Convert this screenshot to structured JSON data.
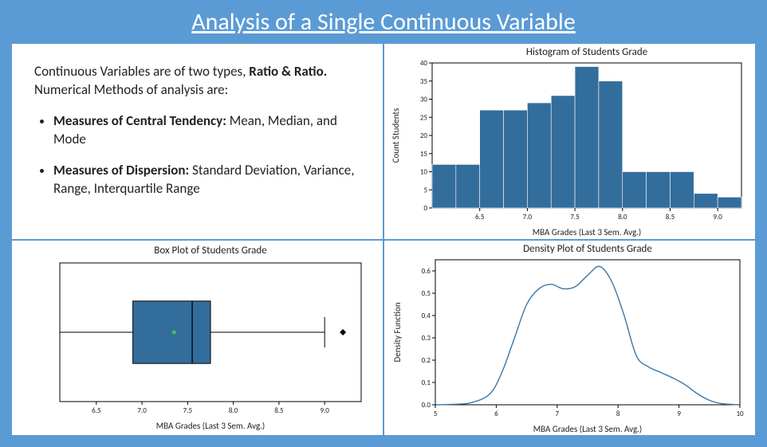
{
  "title": "Analysis of a Single Continuous Variable",
  "frame_bg": "#5b9bd5",
  "content_bg": "#ffffff",
  "text_panel": {
    "intro_prefix": "Continuous Variables are of two types, ",
    "intro_bold": "Ratio & Ratio.",
    "intro_suffix": " Numerical Methods of analysis are:",
    "bullets": [
      {
        "bold": "Measures of Central Tendency:",
        "rest": " Mean, Median, and Mode"
      },
      {
        "bold": "Measures of Dispersion:",
        "rest": " Standard Deviation, Variance, Range, Interquartile Range"
      }
    ],
    "font_size": 17,
    "text_color": "#222222"
  },
  "histogram": {
    "type": "histogram",
    "title": "Histogram of Students Grade",
    "xlabel": "MBA Grades (Last 3 Sem. Avg.)",
    "ylabel": "Count Students",
    "bin_edges": [
      6.0,
      6.25,
      6.5,
      6.75,
      7.0,
      7.25,
      7.5,
      7.75,
      8.0,
      8.25,
      8.5,
      8.75,
      9.0,
      9.25
    ],
    "counts": [
      12,
      12,
      27,
      27,
      29,
      31,
      39,
      35,
      10,
      10,
      10,
      4,
      3
    ],
    "xtick_labels": [
      "6.5",
      "7.0",
      "7.5",
      "8.0",
      "8.5",
      "9.0"
    ],
    "xtick_values": [
      6.5,
      7.0,
      7.5,
      8.0,
      8.5,
      9.0
    ],
    "ytick_step": 5,
    "ylim": [
      0,
      40
    ],
    "xlim": [
      6.0,
      9.25
    ],
    "bar_color": "#336d9c",
    "bar_edge": "#ffffff",
    "axis_color": "#000000",
    "bg": "#ffffff",
    "title_fontsize": 13,
    "label_fontsize": 11,
    "tick_fontsize": 9
  },
  "boxplot": {
    "type": "boxplot",
    "title": "Box Plot of Students Grade",
    "xlabel": "MBA Grades (Last 3 Sem. Avg.)",
    "min": 6.1,
    "q1": 6.9,
    "median": 7.55,
    "q3": 7.75,
    "max": 9.0,
    "outliers": [
      9.2
    ],
    "mean": 7.35,
    "xtick_labels": [
      "6.5",
      "7.0",
      "7.5",
      "8.0",
      "8.5",
      "9.0"
    ],
    "xtick_values": [
      6.5,
      7.0,
      7.5,
      8.0,
      8.5,
      9.0
    ],
    "xlim": [
      6.1,
      9.4
    ],
    "box_color": "#336d9c",
    "whisker_color": "#000000",
    "mean_marker_color": "#49c24f",
    "outlier_marker_color": "#000000",
    "axis_color": "#000000",
    "bg": "#ffffff",
    "title_fontsize": 13,
    "label_fontsize": 11,
    "tick_fontsize": 9
  },
  "density": {
    "type": "density",
    "title": "Density Plot of Students Grade",
    "xlabel": "MBA Grades (Last 3 Sem. Avg.)",
    "ylabel": "Density Function",
    "x": [
      5.0,
      5.3,
      5.6,
      5.9,
      6.1,
      6.3,
      6.5,
      6.7,
      6.9,
      7.1,
      7.3,
      7.5,
      7.7,
      7.9,
      8.1,
      8.3,
      8.5,
      8.7,
      8.9,
      9.1,
      9.3,
      9.5,
      9.7,
      10.0
    ],
    "y": [
      0.0,
      0.002,
      0.01,
      0.05,
      0.15,
      0.3,
      0.45,
      0.52,
      0.54,
      0.52,
      0.53,
      0.58,
      0.62,
      0.55,
      0.4,
      0.22,
      0.17,
      0.145,
      0.12,
      0.09,
      0.05,
      0.02,
      0.005,
      0.0
    ],
    "xtick_labels": [
      "5",
      "6",
      "7",
      "8",
      "9",
      "10"
    ],
    "xtick_values": [
      5,
      6,
      7,
      8,
      9,
      10
    ],
    "ytick_labels": [
      "0.0",
      "0.1",
      "0.2",
      "0.3",
      "0.4",
      "0.5",
      "0.6"
    ],
    "ytick_values": [
      0.0,
      0.1,
      0.2,
      0.3,
      0.4,
      0.5,
      0.6
    ],
    "ylim": [
      0.0,
      0.65
    ],
    "xlim": [
      5.0,
      10.0
    ],
    "line_color": "#3a76a6",
    "line_width": 1.4,
    "axis_color": "#000000",
    "bg": "#ffffff",
    "title_fontsize": 13,
    "label_fontsize": 11,
    "tick_fontsize": 9
  }
}
